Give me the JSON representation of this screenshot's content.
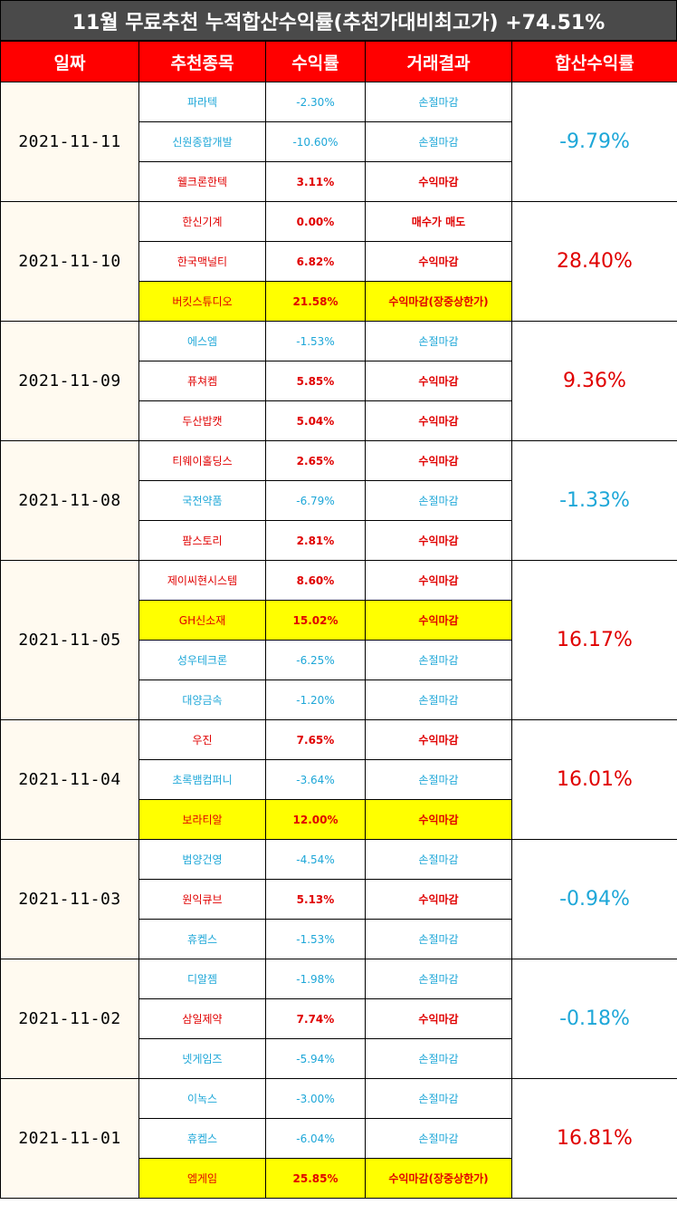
{
  "title": "11월 무료추천 누적합산수익률(추천가대비최고가) +74.51%",
  "headers": [
    "일짜",
    "추천종목",
    "수익률",
    "거래결과",
    "합산수익률"
  ],
  "colors": {
    "header_bg": "#ff0000",
    "title_bg": "#4a4a4a",
    "profit": "#e00000",
    "loss": "#1ea7d8",
    "highlight": "#ffff00"
  },
  "groups": [
    {
      "date": "2021-11-11",
      "total": "-9.79%",
      "total_dir": "down",
      "rows": [
        {
          "name": "파라텍",
          "rate": "-2.30%",
          "result": "손절마감",
          "dir": "loss",
          "hl": false
        },
        {
          "name": "신원종합개발",
          "rate": "-10.60%",
          "result": "손절마감",
          "dir": "loss",
          "hl": false
        },
        {
          "name": "웰크론한텍",
          "rate": "3.11%",
          "result": "수익마감",
          "dir": "profit",
          "hl": false
        }
      ]
    },
    {
      "date": "2021-11-10",
      "total": "28.40%",
      "total_dir": "up",
      "rows": [
        {
          "name": "한신기계",
          "rate": "0.00%",
          "result": "매수가 매도",
          "dir": "profit",
          "hl": false
        },
        {
          "name": "한국맥널티",
          "rate": "6.82%",
          "result": "수익마감",
          "dir": "profit",
          "hl": false
        },
        {
          "name": "버킷스튜디오",
          "rate": "21.58%",
          "result": "수익마감(장중상한가)",
          "dir": "profit",
          "hl": true
        }
      ]
    },
    {
      "date": "2021-11-09",
      "total": "9.36%",
      "total_dir": "up",
      "rows": [
        {
          "name": "에스엠",
          "rate": "-1.53%",
          "result": "손절마감",
          "dir": "loss",
          "hl": false
        },
        {
          "name": "퓨쳐켐",
          "rate": "5.85%",
          "result": "수익마감",
          "dir": "profit",
          "hl": false
        },
        {
          "name": "두산밥캣",
          "rate": "5.04%",
          "result": "수익마감",
          "dir": "profit",
          "hl": false
        }
      ]
    },
    {
      "date": "2021-11-08",
      "total": "-1.33%",
      "total_dir": "down",
      "rows": [
        {
          "name": "티웨이홀딩스",
          "rate": "2.65%",
          "result": "수익마감",
          "dir": "profit",
          "hl": false
        },
        {
          "name": "국전약품",
          "rate": "-6.79%",
          "result": "손절마감",
          "dir": "loss",
          "hl": false
        },
        {
          "name": "팜스토리",
          "rate": "2.81%",
          "result": "수익마감",
          "dir": "profit",
          "hl": false
        }
      ]
    },
    {
      "date": "2021-11-05",
      "total": "16.17%",
      "total_dir": "up",
      "rows": [
        {
          "name": "제이씨현시스템",
          "rate": "8.60%",
          "result": "수익마감",
          "dir": "profit",
          "hl": false
        },
        {
          "name": "GH신소재",
          "rate": "15.02%",
          "result": "수익마감",
          "dir": "profit",
          "hl": true
        },
        {
          "name": "성우테크론",
          "rate": "-6.25%",
          "result": "손절마감",
          "dir": "loss",
          "hl": false
        },
        {
          "name": "대양금속",
          "rate": "-1.20%",
          "result": "손절마감",
          "dir": "loss",
          "hl": false
        }
      ]
    },
    {
      "date": "2021-11-04",
      "total": "16.01%",
      "total_dir": "up",
      "rows": [
        {
          "name": "우진",
          "rate": "7.65%",
          "result": "수익마감",
          "dir": "profit",
          "hl": false
        },
        {
          "name": "초록뱀컴퍼니",
          "rate": "-3.64%",
          "result": "손절마감",
          "dir": "loss",
          "hl": false
        },
        {
          "name": "보라티알",
          "rate": "12.00%",
          "result": "수익마감",
          "dir": "profit",
          "hl": true
        }
      ]
    },
    {
      "date": "2021-11-03",
      "total": "-0.94%",
      "total_dir": "down",
      "rows": [
        {
          "name": "범양건영",
          "rate": "-4.54%",
          "result": "손절마감",
          "dir": "loss",
          "hl": false
        },
        {
          "name": "원익큐브",
          "rate": "5.13%",
          "result": "수익마감",
          "dir": "profit",
          "hl": false
        },
        {
          "name": "휴켐스",
          "rate": "-1.53%",
          "result": "손절마감",
          "dir": "loss",
          "hl": false
        }
      ]
    },
    {
      "date": "2021-11-02",
      "total": "-0.18%",
      "total_dir": "down",
      "rows": [
        {
          "name": "디알젬",
          "rate": "-1.98%",
          "result": "손절마감",
          "dir": "loss",
          "hl": false
        },
        {
          "name": "삼일제약",
          "rate": "7.74%",
          "result": "수익마감",
          "dir": "profit",
          "hl": false
        },
        {
          "name": "넷게임즈",
          "rate": "-5.94%",
          "result": "손절마감",
          "dir": "loss",
          "hl": false
        }
      ]
    },
    {
      "date": "2021-11-01",
      "total": "16.81%",
      "total_dir": "up",
      "rows": [
        {
          "name": "이녹스",
          "rate": "-3.00%",
          "result": "손절마감",
          "dir": "loss",
          "hl": false
        },
        {
          "name": "휴켐스",
          "rate": "-6.04%",
          "result": "손절마감",
          "dir": "loss",
          "hl": false
        },
        {
          "name": "엠게임",
          "rate": "25.85%",
          "result": "수익마감(장중상한가)",
          "dir": "profit",
          "hl": true
        }
      ]
    }
  ]
}
